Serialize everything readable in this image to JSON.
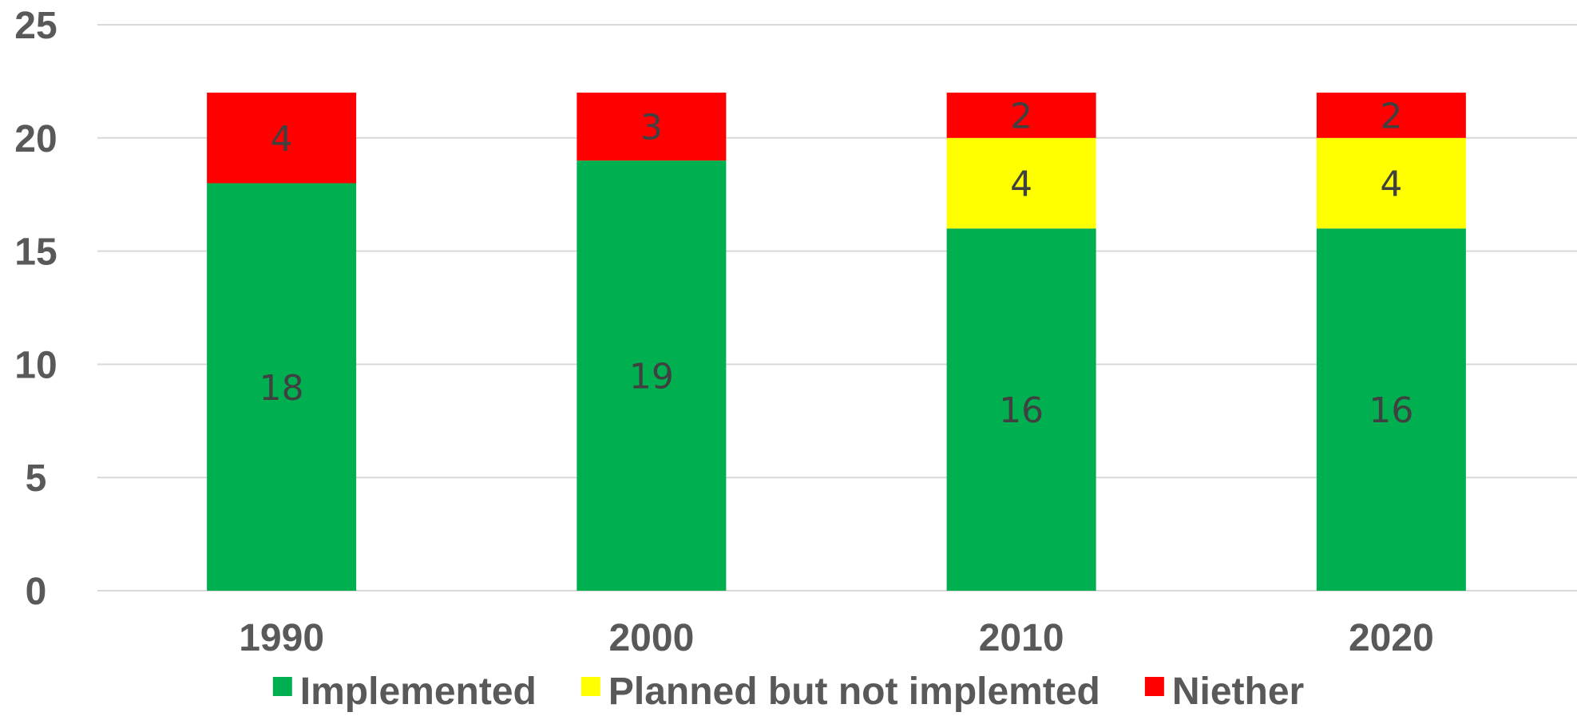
{
  "chart_data": {
    "type": "bar",
    "stacked": true,
    "title": "",
    "xlabel": "",
    "ylabel": "",
    "ylim": [
      0,
      25
    ],
    "yticks": [
      0,
      5,
      10,
      15,
      20,
      25
    ],
    "grid": true,
    "legend_position": "bottom",
    "categories": [
      "1990",
      "2000",
      "2010",
      "2020"
    ],
    "series": [
      {
        "name": "Implemented",
        "color": "#00b050",
        "values": [
          18,
          19,
          16,
          16
        ]
      },
      {
        "name": "Planned but not implemted",
        "color": "#ffff00",
        "values": [
          0,
          0,
          4,
          4
        ]
      },
      {
        "name": "Niether",
        "color": "#ff0000",
        "values": [
          4,
          3,
          2,
          2
        ]
      }
    ]
  }
}
